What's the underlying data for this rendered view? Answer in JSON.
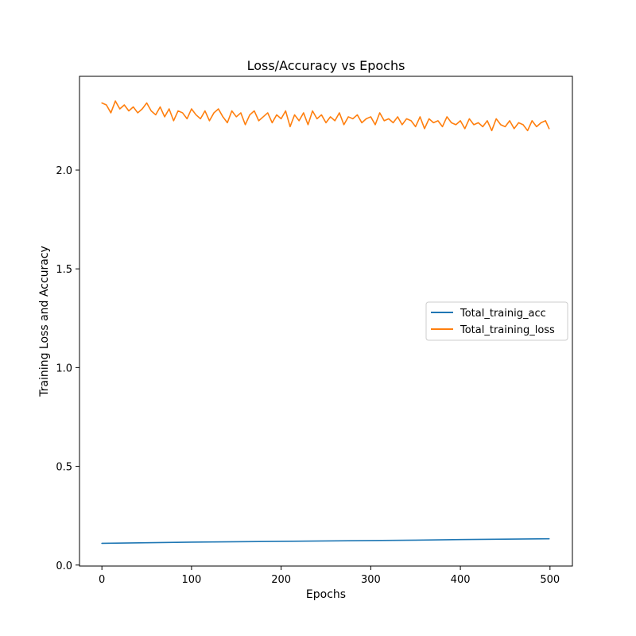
{
  "chart_data": {
    "type": "line",
    "title": "Loss/Accuracy vs Epochs",
    "xlabel": "Epochs",
    "ylabel": "Training Loss and Accuracy",
    "xlim": [
      -25,
      525
    ],
    "ylim": [
      -0.005,
      2.475
    ],
    "xticks": [
      0,
      100,
      200,
      300,
      400,
      500
    ],
    "yticks": [
      0.0,
      0.5,
      1.0,
      1.5,
      2.0
    ],
    "ytick_labels": [
      "0.0",
      "0.5",
      "1.0",
      "1.5",
      "2.0"
    ],
    "legend_position": "center-right",
    "grid": false,
    "series": [
      {
        "name": "Total_trainig_acc",
        "color": "#1f77b4",
        "x": [
          0,
          50,
          100,
          150,
          200,
          250,
          300,
          350,
          400,
          450,
          499
        ],
        "y": [
          0.11,
          0.113,
          0.116,
          0.118,
          0.12,
          0.122,
          0.124,
          0.126,
          0.129,
          0.131,
          0.133
        ]
      },
      {
        "name": "Total_training_loss",
        "color": "#ff7f0e",
        "x": [
          0,
          5,
          10,
          15,
          20,
          25,
          30,
          35,
          40,
          45,
          50,
          55,
          60,
          65,
          70,
          75,
          80,
          85,
          90,
          95,
          100,
          105,
          110,
          115,
          120,
          125,
          130,
          135,
          140,
          145,
          150,
          155,
          160,
          165,
          170,
          175,
          180,
          185,
          190,
          195,
          200,
          205,
          210,
          215,
          220,
          225,
          230,
          235,
          240,
          245,
          250,
          255,
          260,
          265,
          270,
          275,
          280,
          285,
          290,
          295,
          300,
          305,
          310,
          315,
          320,
          325,
          330,
          335,
          340,
          345,
          350,
          355,
          360,
          365,
          370,
          375,
          380,
          385,
          390,
          395,
          400,
          405,
          410,
          415,
          420,
          425,
          430,
          435,
          440,
          445,
          450,
          455,
          460,
          465,
          470,
          475,
          480,
          485,
          490,
          495,
          499
        ],
        "y": [
          2.34,
          2.33,
          2.29,
          2.35,
          2.31,
          2.33,
          2.3,
          2.32,
          2.29,
          2.31,
          2.34,
          2.3,
          2.28,
          2.32,
          2.27,
          2.31,
          2.25,
          2.3,
          2.29,
          2.26,
          2.31,
          2.28,
          2.26,
          2.3,
          2.25,
          2.29,
          2.31,
          2.27,
          2.24,
          2.3,
          2.27,
          2.29,
          2.23,
          2.28,
          2.3,
          2.25,
          2.27,
          2.29,
          2.24,
          2.28,
          2.26,
          2.3,
          2.22,
          2.28,
          2.25,
          2.29,
          2.23,
          2.3,
          2.26,
          2.28,
          2.24,
          2.27,
          2.25,
          2.29,
          2.23,
          2.27,
          2.26,
          2.28,
          2.24,
          2.26,
          2.27,
          2.23,
          2.29,
          2.25,
          2.26,
          2.24,
          2.27,
          2.23,
          2.26,
          2.25,
          2.22,
          2.27,
          2.21,
          2.26,
          2.24,
          2.25,
          2.22,
          2.27,
          2.24,
          2.23,
          2.25,
          2.21,
          2.26,
          2.23,
          2.24,
          2.22,
          2.25,
          2.2,
          2.26,
          2.23,
          2.22,
          2.25,
          2.21,
          2.24,
          2.23,
          2.2,
          2.25,
          2.22,
          2.24,
          2.25,
          2.21
        ]
      }
    ]
  }
}
